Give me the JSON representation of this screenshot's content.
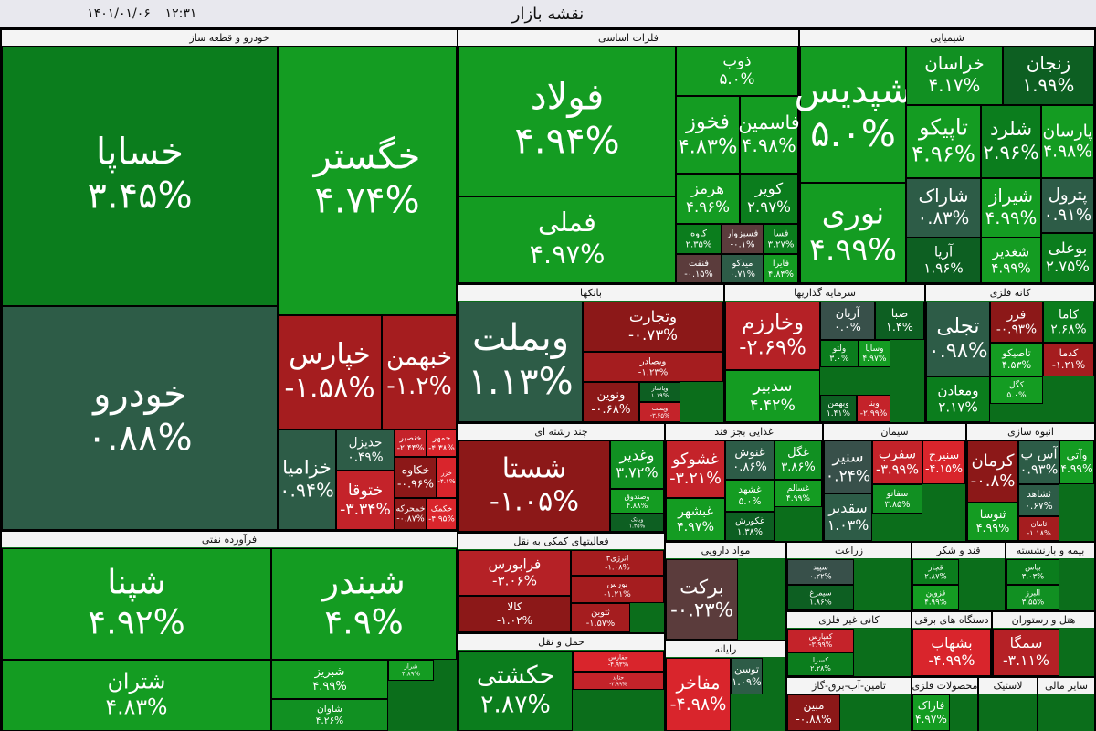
{
  "header": {
    "title": "نقشه بازار",
    "date": "۱۴۰۱/۰۱/۰۶",
    "time": "۱۲:۳۱"
  },
  "sectors": [
    {
      "name": "خودرو و قطعه ساز",
      "tiles": [
        {
          "name": "خساپا",
          "change": "۳.۴۵%",
          "color": "#0b7d1d"
        },
        {
          "name": "خگستر",
          "change": "۴.۷۴%",
          "color": "#149c22"
        },
        {
          "name": "خودرو",
          "change": "۰.۸۸%",
          "color": "#2d5c47"
        },
        {
          "name": "خپارس",
          "change": "-۱.۵۸%",
          "color": "#a51d1f"
        },
        {
          "name": "خبهمن",
          "change": "-۱.۲%",
          "color": "#a51d1f"
        },
        {
          "name": "خزامیا",
          "change": "۰.۹۴%",
          "color": "#2d5c47"
        },
        {
          "name": "خدیزل",
          "change": "۰.۴۹%",
          "color": "#2d5c47"
        },
        {
          "name": "ختوقا",
          "change": "-۳.۳۴%",
          "color": "#c4232a"
        },
        {
          "name": "خنصیر",
          "change": "-۲.۴۴%",
          "color": "#c4232a"
        },
        {
          "name": "خمهر",
          "change": "-۴.۳۸%",
          "color": "#d9252c"
        },
        {
          "name": "خکاوه",
          "change": "-۰.۹۶%",
          "color": "#8c1818"
        },
        {
          "name": "خزر",
          "change": "-۴.۱%",
          "color": "#d9252c"
        },
        {
          "name": "خمحرکه",
          "change": "-۰.۸۷%",
          "color": "#8c1818"
        },
        {
          "name": "خکمک",
          "change": "-۴.۹۵%",
          "color": "#d9252c"
        }
      ]
    },
    {
      "name": "فلزات اساسی",
      "tiles": [
        {
          "name": "فولاد",
          "change": "۴.۹۴%",
          "color": "#149c22"
        },
        {
          "name": "فملی",
          "change": "۴.۹۷%",
          "color": "#149c22"
        },
        {
          "name": "ذوب",
          "change": "۵.۰%",
          "color": "#149c22"
        },
        {
          "name": "فخوز",
          "change": "۴.۸۳%",
          "color": "#149c22"
        },
        {
          "name": "فاسمین",
          "change": "۴.۹۸%",
          "color": "#149c22"
        },
        {
          "name": "هرمز",
          "change": "۴.۹۶%",
          "color": "#149c22"
        },
        {
          "name": "کویر",
          "change": "۲.۹۷%",
          "color": "#0b7d1d"
        },
        {
          "name": "کاوه",
          "change": "۲.۳۵%",
          "color": "#0b7d1d"
        },
        {
          "name": "فسبزوار",
          "change": "-۰.۱%",
          "color": "#5b3c3c"
        },
        {
          "name": "فسا",
          "change": "۳.۲۷%",
          "color": "#0b7d1d"
        },
        {
          "name": "فنفت",
          "change": "-۰.۱۵%",
          "color": "#5b3c3c"
        },
        {
          "name": "میدکو",
          "change": "۰.۷۱%",
          "color": "#2d5c47"
        },
        {
          "name": "فایرا",
          "change": "۴.۸۴%",
          "color": "#149c22"
        }
      ]
    },
    {
      "name": "شیمیایی",
      "tiles": [
        {
          "name": "شپدیس",
          "change": "۵.۰%",
          "color": "#149c22"
        },
        {
          "name": "نوری",
          "change": "۴.۹۹%",
          "color": "#149c22"
        },
        {
          "name": "خراسان",
          "change": "۴.۱۷%",
          "color": "#119022"
        },
        {
          "name": "زنجان",
          "change": "۱.۹۹%",
          "color": "#0d5f22"
        },
        {
          "name": "تاپیکو",
          "change": "۴.۹۶%",
          "color": "#149c22"
        },
        {
          "name": "شلرد",
          "change": "۲.۹۶%",
          "color": "#0b7d1d"
        },
        {
          "name": "پارسان",
          "change": "۴.۹۸%",
          "color": "#149c22"
        },
        {
          "name": "شاراک",
          "change": "۰.۸۳%",
          "color": "#2d5c47"
        },
        {
          "name": "آریا",
          "change": "۱.۹۶%",
          "color": "#0d5f22"
        },
        {
          "name": "شیراز",
          "change": "۴.۹۹%",
          "color": "#149c22"
        },
        {
          "name": "شغدیر",
          "change": "۴.۹۹%",
          "color": "#149c22"
        },
        {
          "name": "پترول",
          "change": "۰.۹۱%",
          "color": "#2d5c47"
        },
        {
          "name": "بوعلی",
          "change": "۲.۷۵%",
          "color": "#0b7d1d"
        }
      ]
    },
    {
      "name": "بانکها",
      "tiles": [
        {
          "name": "وبملت",
          "change": "۱.۱۳%",
          "color": "#2d5c47"
        },
        {
          "name": "وتجارت",
          "change": "-۰.۷۳%",
          "color": "#8c1818"
        },
        {
          "name": "وبصادر",
          "change": "-۱.۲۳%",
          "color": "#a51d1f"
        },
        {
          "name": "ونوین",
          "change": "-۰.۶۸%",
          "color": "#8c1818"
        },
        {
          "name": "وپاسار",
          "change": "۱.۱۹%",
          "color": "#0d5f22"
        },
        {
          "name": "وپست",
          "change": "-۳.۴۵%",
          "color": "#c4232a"
        }
      ]
    },
    {
      "name": "سرمایه گذاریها",
      "tiles": [
        {
          "name": "وخارزم",
          "change": "-۲.۶۹%",
          "color": "#b52126"
        },
        {
          "name": "سدبیر",
          "change": "۴.۴۲%",
          "color": "#149c22"
        },
        {
          "name": "آریان",
          "change": "۰.۰%",
          "color": "#38504a"
        },
        {
          "name": "صبا",
          "change": "۱.۴%",
          "color": "#0d5f22"
        },
        {
          "name": "ولتو",
          "change": "۳.۰%",
          "color": "#0b7d1d"
        },
        {
          "name": "وسایا",
          "change": "۴.۹۷%",
          "color": "#149c22"
        },
        {
          "name": "وبهمن",
          "change": "۱.۴۱%",
          "color": "#0d5f22"
        },
        {
          "name": "وبنا",
          "change": "-۲.۹۹%",
          "color": "#c4232a"
        }
      ]
    },
    {
      "name": "کانه فلزی",
      "tiles": [
        {
          "name": "تجلی",
          "change": "۰.۹۸%",
          "color": "#2d5c47"
        },
        {
          "name": "ومعادن",
          "change": "۲.۱۷%",
          "color": "#0b7d1d"
        },
        {
          "name": "فزر",
          "change": "-۰.۹۳%",
          "color": "#8c1818"
        },
        {
          "name": "کاما",
          "change": "۲.۶۸%",
          "color": "#0b7d1d"
        },
        {
          "name": "تاصیکو",
          "change": "۴.۵۳%",
          "color": "#149c22"
        },
        {
          "name": "کدما",
          "change": "-۱.۲۱%",
          "color": "#a51d1f"
        },
        {
          "name": "کگل",
          "change": "۵.۰%",
          "color": "#149c22"
        }
      ]
    },
    {
      "name": "چند رشته ای",
      "tiles": [
        {
          "name": "شستا",
          "change": "-۱.۰۵%",
          "color": "#8c1818"
        },
        {
          "name": "وغدیر",
          "change": "۳.۷۲%",
          "color": "#119022"
        },
        {
          "name": "وصندوق",
          "change": "۴.۸۸%",
          "color": "#149c22"
        },
        {
          "name": "وبانک",
          "change": "۱.۳۵%",
          "color": "#0d5f22"
        }
      ]
    },
    {
      "name": "غذایی بجز قند",
      "tiles": [
        {
          "name": "غشوکو",
          "change": "-۳.۲۱%",
          "color": "#c4232a"
        },
        {
          "name": "غبشهر",
          "change": "۴.۹۷%",
          "color": "#149c22"
        },
        {
          "name": "غنوش",
          "change": "۰.۸۶%",
          "color": "#2d5c47"
        },
        {
          "name": "غگل",
          "change": "۳.۸۶%",
          "color": "#119022"
        },
        {
          "name": "غشهد",
          "change": "۵.۰%",
          "color": "#149c22"
        },
        {
          "name": "غسالم",
          "change": "۴.۹۹%",
          "color": "#149c22"
        },
        {
          "name": "غکورش",
          "change": "۱.۳۸%",
          "color": "#0d5f22"
        }
      ]
    },
    {
      "name": "سیمان",
      "tiles": [
        {
          "name": "سنیر",
          "change": "۰.۲۴%",
          "color": "#38504a"
        },
        {
          "name": "سقدیر",
          "change": "۱.۰۳%",
          "color": "#2d5c47"
        },
        {
          "name": "سفرب",
          "change": "-۳.۹۹%",
          "color": "#c4232a"
        },
        {
          "name": "سنیرح",
          "change": "-۴.۱۵%",
          "color": "#d9252c"
        },
        {
          "name": "سفانو",
          "change": "۳.۸۵%",
          "color": "#119022"
        }
      ]
    },
    {
      "name": "انبوه سازی",
      "tiles": [
        {
          "name": "کرمان",
          "change": "-۰.۸%",
          "color": "#8c1818"
        },
        {
          "name": "آس پ",
          "change": "۰.۹۳%",
          "color": "#2d5c47"
        },
        {
          "name": "وآتی",
          "change": "۴.۹۹%",
          "color": "#149c22"
        },
        {
          "name": "ثنوسا",
          "change": "۴.۹۹%",
          "color": "#149c22"
        },
        {
          "name": "ثشاهد",
          "change": "۰.۶۷%",
          "color": "#2d5c47"
        },
        {
          "name": "ثامان",
          "change": "-۱.۱۸%",
          "color": "#a51d1f"
        }
      ]
    },
    {
      "name": "فرآورده نفتی",
      "tiles": [
        {
          "name": "شپنا",
          "change": "۴.۹۲%",
          "color": "#149c22"
        },
        {
          "name": "شتران",
          "change": "۴.۸۳%",
          "color": "#149c22"
        },
        {
          "name": "شبندر",
          "change": "۴.۹%",
          "color": "#149c22"
        },
        {
          "name": "شبریز",
          "change": "۴.۹۹%",
          "color": "#149c22"
        },
        {
          "name": "شاوان",
          "change": "۴.۲۶%",
          "color": "#119022"
        },
        {
          "name": "شراز",
          "change": "۴.۸۹%",
          "color": "#149c22"
        }
      ]
    },
    {
      "name": "فعالیتهای کمکی به نقل",
      "tiles": [
        {
          "name": "فرابورس",
          "change": "-۳.۰۶%",
          "color": "#b52126"
        },
        {
          "name": "کالا",
          "change": "-۱.۰۲%",
          "color": "#8c1818"
        },
        {
          "name": "انرژی۳",
          "change": "-۱.۰۸%",
          "color": "#a51d1f"
        },
        {
          "name": "بورس",
          "change": "-۱.۲۱%",
          "color": "#a51d1f"
        },
        {
          "name": "ثتوین",
          "change": "-۱.۵۷%",
          "color": "#a51d1f"
        }
      ]
    },
    {
      "name": "حمل و نقل",
      "tiles": [
        {
          "name": "حکشتی",
          "change": "۲.۸۷%",
          "color": "#0b7d1d"
        },
        {
          "name": "حفارس",
          "change": "-۴.۹۳%",
          "color": "#d9252c"
        },
        {
          "name": "حتاید",
          "change": "-۳.۹۹%",
          "color": "#c4232a"
        }
      ]
    },
    {
      "name": "مواد دارویی",
      "tiles": [
        {
          "name": "برکت",
          "change": "-۰.۲۳%",
          "color": "#5b3c3c"
        }
      ]
    },
    {
      "name": "زراعت",
      "tiles": [
        {
          "name": "سپید",
          "change": "۰.۲۲%",
          "color": "#38504a"
        },
        {
          "name": "سیمرغ",
          "change": "۱.۸۶%",
          "color": "#0d5f22"
        }
      ]
    },
    {
      "name": "قند و شکر",
      "tiles": [
        {
          "name": "قچار",
          "change": "۲.۸۷%",
          "color": "#0b7d1d"
        },
        {
          "name": "قزوین",
          "change": "۴.۹۹%",
          "color": "#149c22"
        }
      ]
    },
    {
      "name": "بیمه و بازنشسته",
      "tiles": [
        {
          "name": "بپاس",
          "change": "۳.۰۳%",
          "color": "#0b7d1d"
        },
        {
          "name": "البرز",
          "change": "۳.۵۵%",
          "color": "#119022"
        }
      ]
    },
    {
      "name": "کانی غیر فلزی",
      "tiles": [
        {
          "name": "کفپارس",
          "change": "-۳.۹۹%",
          "color": "#c4232a"
        },
        {
          "name": "کسرا",
          "change": "۲.۲۸%",
          "color": "#0b7d1d"
        }
      ]
    },
    {
      "name": "دستگاه های برقی",
      "tiles": [
        {
          "name": "بشهاب",
          "change": "-۴.۹۹%",
          "color": "#d9252c"
        }
      ]
    },
    {
      "name": "هتل و رستوران",
      "tiles": [
        {
          "name": "سمگا",
          "change": "-۳.۱۱%",
          "color": "#b52126"
        }
      ]
    },
    {
      "name": "رایانه",
      "tiles": [
        {
          "name": "مفاخر",
          "change": "-۴.۹۸%",
          "color": "#d9252c"
        },
        {
          "name": "توسن",
          "change": "۱.۰۹%",
          "color": "#2d5c47"
        }
      ]
    },
    {
      "name": "تامین-آب-برق-گاز",
      "tiles": [
        {
          "name": "مبین",
          "change": "-۰.۸۸%",
          "color": "#8c1818"
        }
      ]
    },
    {
      "name": "محصولات فلزی",
      "tiles": [
        {
          "name": "فاراک",
          "change": "۴.۹۷%",
          "color": "#149c22"
        }
      ]
    },
    {
      "name": "لاستیک",
      "tiles": []
    },
    {
      "name": "سایر مالی",
      "tiles": []
    }
  ]
}
